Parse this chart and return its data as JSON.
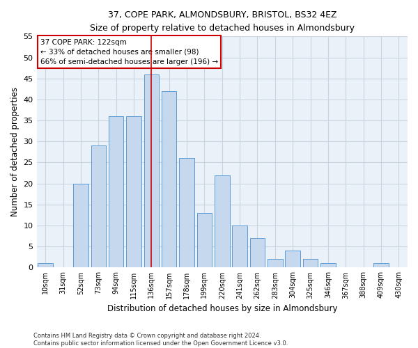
{
  "title": "37, COPE PARK, ALMONDSBURY, BRISTOL, BS32 4EZ",
  "subtitle": "Size of property relative to detached houses in Almondsbury",
  "xlabel": "Distribution of detached houses by size in Almondsbury",
  "ylabel": "Number of detached properties",
  "footer": "Contains HM Land Registry data © Crown copyright and database right 2024.\nContains public sector information licensed under the Open Government Licence v3.0.",
  "bins": [
    "10sqm",
    "31sqm",
    "52sqm",
    "73sqm",
    "94sqm",
    "115sqm",
    "136sqm",
    "157sqm",
    "178sqm",
    "199sqm",
    "220sqm",
    "241sqm",
    "262sqm",
    "283sqm",
    "304sqm",
    "325sqm",
    "346sqm",
    "367sqm",
    "388sqm",
    "409sqm",
    "430sqm"
  ],
  "values": [
    1,
    0,
    20,
    29,
    36,
    36,
    46,
    42,
    26,
    13,
    22,
    10,
    7,
    2,
    4,
    2,
    1,
    0,
    0,
    1,
    0
  ],
  "bar_color": "#c5d8ed",
  "bar_edge_color": "#5b9bd5",
  "grid_color": "#c8d4e0",
  "background_color": "#eaf1f8",
  "property_line_bin_index": 6,
  "annotation_text": "37 COPE PARK: 122sqm\n← 33% of detached houses are smaller (98)\n66% of semi-detached houses are larger (196) →",
  "annotation_box_color": "#ffffff",
  "annotation_box_edge": "#cc0000",
  "red_line_color": "#cc0000",
  "ylim": [
    0,
    55
  ],
  "yticks": [
    0,
    5,
    10,
    15,
    20,
    25,
    30,
    35,
    40,
    45,
    50,
    55
  ]
}
